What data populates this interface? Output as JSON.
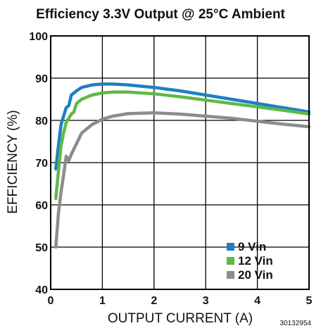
{
  "chart_data": {
    "type": "line",
    "title": "Efficiency 3.3V Output @ 25°C Ambient",
    "xlabel": "OUTPUT CURRENT (A)",
    "ylabel": "EFFICIENCY (%)",
    "xlim": [
      0,
      5
    ],
    "ylim": [
      40,
      100
    ],
    "xticks": [
      0,
      1,
      2,
      3,
      4,
      5
    ],
    "yticks": [
      40,
      50,
      60,
      70,
      80,
      90,
      100
    ],
    "grid": true,
    "legend_position": "bottom-right",
    "figure_id": "30132954",
    "series": [
      {
        "name": "9 Vin",
        "color": "#1f7fc1",
        "points": [
          [
            0.1,
            68.5
          ],
          [
            0.15,
            74
          ],
          [
            0.2,
            79
          ],
          [
            0.25,
            81
          ],
          [
            0.3,
            83
          ],
          [
            0.35,
            83.5
          ],
          [
            0.4,
            86
          ],
          [
            0.5,
            87
          ],
          [
            0.6,
            87.8
          ],
          [
            0.8,
            88.4
          ],
          [
            1.0,
            88.6
          ],
          [
            1.2,
            88.6
          ],
          [
            1.5,
            88.4
          ],
          [
            2.0,
            87.8
          ],
          [
            2.5,
            87.0
          ],
          [
            3.0,
            86.0
          ],
          [
            3.5,
            85.0
          ],
          [
            4.0,
            84.0
          ],
          [
            4.5,
            83.0
          ],
          [
            5.0,
            82.0
          ]
        ]
      },
      {
        "name": "12 Vin",
        "color": "#5fb946",
        "points": [
          [
            0.1,
            61.5
          ],
          [
            0.15,
            68
          ],
          [
            0.2,
            74
          ],
          [
            0.25,
            77
          ],
          [
            0.3,
            79.5
          ],
          [
            0.35,
            80.5
          ],
          [
            0.4,
            81.5
          ],
          [
            0.45,
            82
          ],
          [
            0.5,
            84
          ],
          [
            0.6,
            85
          ],
          [
            0.8,
            86
          ],
          [
            1.0,
            86.5
          ],
          [
            1.2,
            86.7
          ],
          [
            1.5,
            86.7
          ],
          [
            2.0,
            86.3
          ],
          [
            2.5,
            85.6
          ],
          [
            3.0,
            84.8
          ],
          [
            3.5,
            84.0
          ],
          [
            4.0,
            83.2
          ],
          [
            4.5,
            82.4
          ],
          [
            5.0,
            81.5
          ]
        ]
      },
      {
        "name": "20 Vin",
        "color": "#8c8c8c",
        "points": [
          [
            0.1,
            50
          ],
          [
            0.15,
            58
          ],
          [
            0.2,
            63
          ],
          [
            0.25,
            67
          ],
          [
            0.3,
            71.5
          ],
          [
            0.35,
            70.5
          ],
          [
            0.4,
            72
          ],
          [
            0.5,
            74.5
          ],
          [
            0.6,
            77
          ],
          [
            0.8,
            79
          ],
          [
            1.0,
            80.3
          ],
          [
            1.2,
            81
          ],
          [
            1.5,
            81.6
          ],
          [
            2.0,
            81.8
          ],
          [
            2.5,
            81.5
          ],
          [
            3.0,
            81.0
          ],
          [
            3.5,
            80.5
          ],
          [
            4.0,
            79.8
          ],
          [
            4.5,
            79.1
          ],
          [
            5.0,
            78.5
          ]
        ]
      }
    ]
  }
}
